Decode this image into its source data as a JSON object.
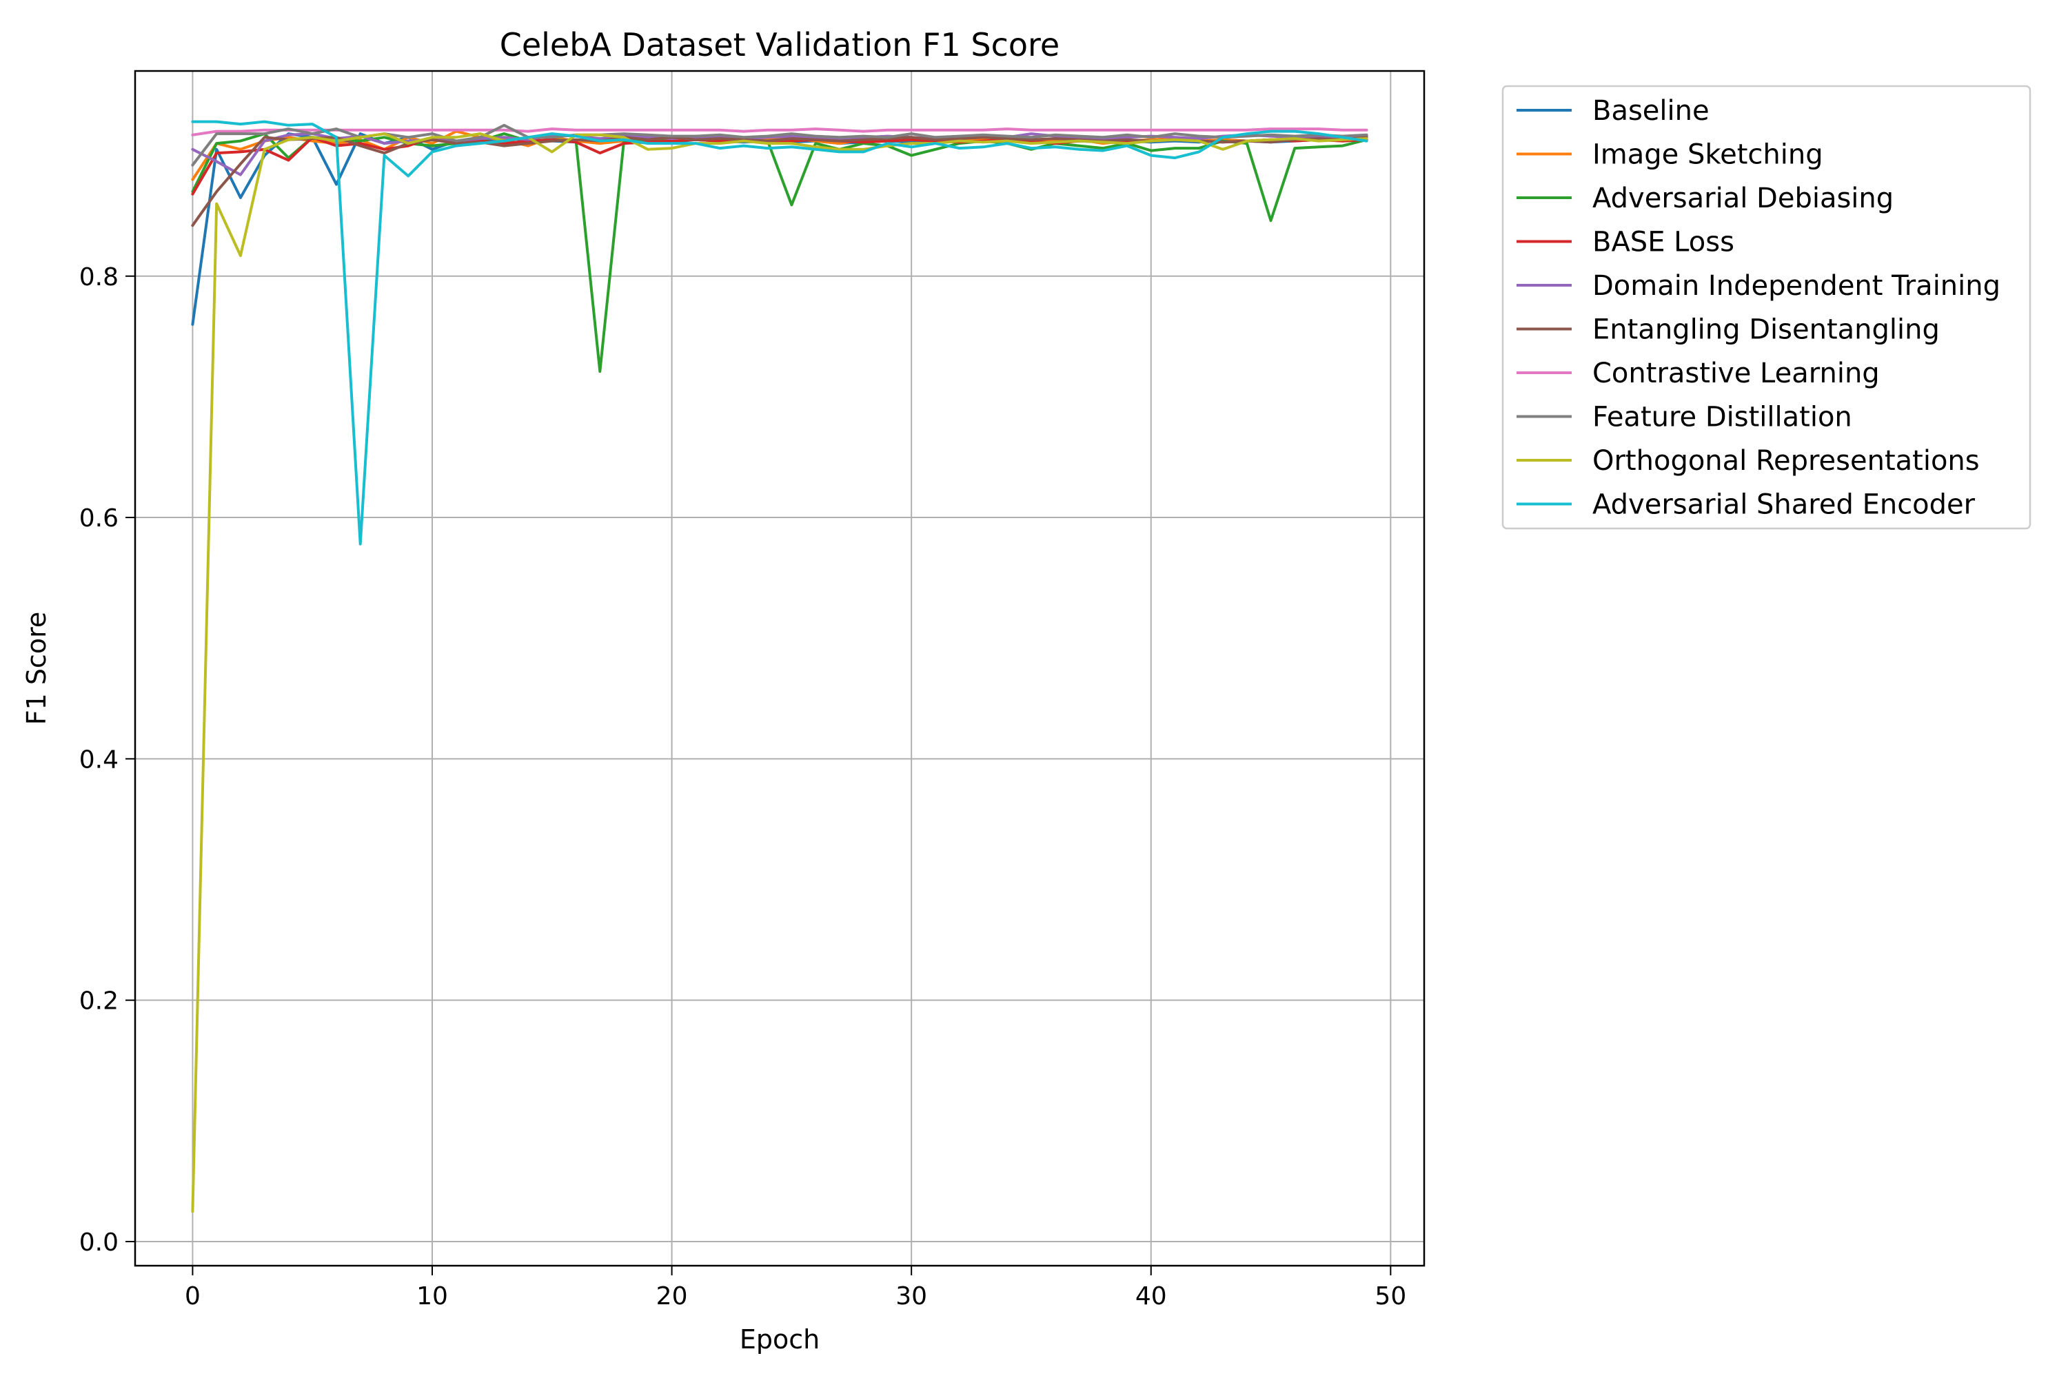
{
  "chart_data": {
    "type": "line",
    "title": "CelebA Dataset Validation F1 Score",
    "xlabel": "Epoch",
    "ylabel": "F1 Score",
    "xlim": [
      -2.4,
      51.4
    ],
    "ylim": [
      -0.02,
      0.97
    ],
    "xticks": [
      0,
      10,
      20,
      30,
      40,
      50
    ],
    "yticks": [
      0.0,
      0.2,
      0.4,
      0.6,
      0.8
    ],
    "ytick_labels": [
      "0.0",
      "0.2",
      "0.4",
      "0.6",
      "0.8"
    ],
    "xtick_labels": [
      "0",
      "10",
      "20",
      "30",
      "40",
      "50"
    ],
    "grid": true,
    "legend_position": "outside-right-top",
    "x": [
      0,
      1,
      2,
      3,
      4,
      5,
      6,
      7,
      8,
      9,
      10,
      11,
      12,
      13,
      14,
      15,
      16,
      17,
      18,
      19,
      20,
      21,
      22,
      23,
      24,
      25,
      26,
      27,
      28,
      29,
      30,
      31,
      32,
      33,
      34,
      35,
      36,
      37,
      38,
      39,
      40,
      41,
      42,
      43,
      44,
      45,
      46,
      47,
      48,
      49
    ],
    "series": [
      {
        "name": "Baseline",
        "color": "#1f77b4",
        "values": [
          0.76,
          0.905,
          0.865,
          0.9,
          0.918,
          0.915,
          0.876,
          0.918,
          0.91,
          0.915,
          0.905,
          0.912,
          0.912,
          0.914,
          0.913,
          0.912,
          0.911,
          0.913,
          0.912,
          0.912,
          0.911,
          0.913,
          0.912,
          0.911,
          0.912,
          0.911,
          0.912,
          0.91,
          0.911,
          0.912,
          0.911,
          0.912,
          0.911,
          0.912,
          0.913,
          0.912,
          0.911,
          0.912,
          0.911,
          0.912,
          0.911,
          0.912,
          0.911,
          0.913,
          0.912,
          0.911,
          0.912,
          0.913,
          0.912,
          0.913
        ]
      },
      {
        "name": "Image Sketching",
        "color": "#ff7f0e",
        "values": [
          0.88,
          0.91,
          0.905,
          0.912,
          0.915,
          0.912,
          0.91,
          0.913,
          0.905,
          0.915,
          0.91,
          0.92,
          0.915,
          0.913,
          0.908,
          0.915,
          0.912,
          0.91,
          0.912,
          0.914,
          0.913,
          0.915,
          0.914,
          0.912,
          0.913,
          0.914,
          0.912,
          0.91,
          0.913,
          0.912,
          0.913,
          0.912,
          0.914,
          0.913,
          0.914,
          0.913,
          0.912,
          0.913,
          0.91,
          0.912,
          0.913,
          0.914,
          0.912,
          0.913,
          0.912,
          0.913,
          0.914,
          0.913,
          0.912,
          0.913
        ]
      },
      {
        "name": "Adversarial Debiasing",
        "color": "#2ca02c",
        "values": [
          0.87,
          0.91,
          0.912,
          0.918,
          0.898,
          0.915,
          0.913,
          0.912,
          0.915,
          0.91,
          0.908,
          0.91,
          0.912,
          0.918,
          0.912,
          0.913,
          0.912,
          0.721,
          0.912,
          0.913,
          0.912,
          0.913,
          0.912,
          0.913,
          0.912,
          0.859,
          0.91,
          0.905,
          0.91,
          0.908,
          0.9,
          0.905,
          0.91,
          0.912,
          0.91,
          0.905,
          0.91,
          0.908,
          0.906,
          0.91,
          0.904,
          0.906,
          0.906,
          0.912,
          0.91,
          0.846,
          0.906,
          0.907,
          0.908,
          0.913
        ]
      },
      {
        "name": "BASE Loss",
        "color": "#d62728",
        "values": [
          0.868,
          0.902,
          0.903,
          0.905,
          0.896,
          0.915,
          0.908,
          0.91,
          0.905,
          0.908,
          0.915,
          0.912,
          0.912,
          0.91,
          0.912,
          0.913,
          0.911,
          0.902,
          0.91,
          0.911,
          0.912,
          0.913,
          0.912,
          0.913,
          0.911,
          0.912,
          0.913,
          0.912,
          0.911,
          0.912,
          0.913,
          0.912,
          0.911,
          0.912,
          0.913,
          0.912,
          0.91,
          0.912,
          0.913,
          0.911,
          0.912,
          0.913,
          0.912,
          0.911,
          0.912,
          0.913,
          0.912,
          0.913,
          0.912,
          0.913
        ]
      },
      {
        "name": "Domain Independent Training",
        "color": "#9467bd",
        "values": [
          0.905,
          0.895,
          0.884,
          0.912,
          0.917,
          0.918,
          0.914,
          0.916,
          0.91,
          0.912,
          0.913,
          0.912,
          0.914,
          0.915,
          0.913,
          0.917,
          0.916,
          0.914,
          0.916,
          0.915,
          0.914,
          0.915,
          0.916,
          0.914,
          0.915,
          0.916,
          0.915,
          0.914,
          0.915,
          0.916,
          0.915,
          0.914,
          0.915,
          0.916,
          0.915,
          0.918,
          0.916,
          0.915,
          0.914,
          0.915,
          0.916,
          0.915,
          0.914,
          0.916,
          0.917,
          0.916,
          0.915,
          0.916,
          0.915,
          0.916
        ]
      },
      {
        "name": "Entangling Disentangling",
        "color": "#8c564b",
        "values": [
          0.842,
          0.87,
          0.893,
          0.915,
          0.913,
          0.914,
          0.915,
          0.908,
          0.902,
          0.91,
          0.913,
          0.91,
          0.911,
          0.908,
          0.91,
          0.912,
          0.913,
          0.912,
          0.915,
          0.913,
          0.915,
          0.913,
          0.914,
          0.913,
          0.912,
          0.914,
          0.913,
          0.912,
          0.913,
          0.914,
          0.915,
          0.913,
          0.914,
          0.915,
          0.914,
          0.913,
          0.914,
          0.913,
          0.912,
          0.913,
          0.912,
          0.913,
          0.912,
          0.911,
          0.912,
          0.911,
          0.913,
          0.914,
          0.913,
          0.915
        ]
      },
      {
        "name": "Contrastive Learning",
        "color": "#e377c2",
        "values": [
          0.917,
          0.92,
          0.92,
          0.921,
          0.921,
          0.921,
          0.921,
          0.921,
          0.921,
          0.921,
          0.921,
          0.921,
          0.921,
          0.921,
          0.92,
          0.922,
          0.921,
          0.921,
          0.921,
          0.921,
          0.921,
          0.921,
          0.921,
          0.92,
          0.921,
          0.921,
          0.922,
          0.921,
          0.92,
          0.921,
          0.921,
          0.921,
          0.921,
          0.921,
          0.922,
          0.921,
          0.921,
          0.921,
          0.921,
          0.921,
          0.921,
          0.921,
          0.921,
          0.921,
          0.921,
          0.922,
          0.922,
          0.922,
          0.921,
          0.921
        ]
      },
      {
        "name": "Feature Distillation",
        "color": "#7f7f7f",
        "values": [
          0.892,
          0.918,
          0.918,
          0.918,
          0.922,
          0.918,
          0.922,
          0.915,
          0.918,
          0.915,
          0.918,
          0.912,
          0.915,
          0.925,
          0.915,
          0.915,
          0.917,
          0.917,
          0.918,
          0.917,
          0.916,
          0.916,
          0.917,
          0.915,
          0.916,
          0.918,
          0.916,
          0.915,
          0.916,
          0.915,
          0.918,
          0.915,
          0.916,
          0.917,
          0.916,
          0.915,
          0.917,
          0.916,
          0.915,
          0.917,
          0.915,
          0.918,
          0.916,
          0.915,
          0.916,
          0.917,
          0.916,
          0.917,
          0.916,
          0.917
        ]
      },
      {
        "name": "Orthogonal Representations",
        "color": "#bcbd22",
        "values": [
          0.025,
          0.86,
          0.817,
          0.905,
          0.913,
          0.915,
          0.912,
          0.915,
          0.918,
          0.91,
          0.915,
          0.915,
          0.918,
          0.912,
          0.915,
          0.903,
          0.917,
          0.917,
          0.915,
          0.905,
          0.906,
          0.91,
          0.91,
          0.912,
          0.91,
          0.91,
          0.907,
          0.905,
          0.905,
          0.908,
          0.91,
          0.91,
          0.912,
          0.911,
          0.912,
          0.91,
          0.911,
          0.912,
          0.911,
          0.91,
          0.912,
          0.913,
          0.912,
          0.905,
          0.912,
          0.913,
          0.914,
          0.912,
          0.913,
          0.914
        ]
      },
      {
        "name": "Adversarial Shared Encoder",
        "color": "#17becf",
        "values": [
          0.928,
          0.928,
          0.926,
          0.928,
          0.925,
          0.926,
          0.915,
          0.578,
          0.9,
          0.883,
          0.903,
          0.908,
          0.91,
          0.912,
          0.915,
          0.918,
          0.916,
          0.912,
          0.913,
          0.91,
          0.91,
          0.91,
          0.906,
          0.908,
          0.906,
          0.907,
          0.905,
          0.903,
          0.903,
          0.91,
          0.907,
          0.91,
          0.906,
          0.907,
          0.91,
          0.906,
          0.907,
          0.905,
          0.904,
          0.908,
          0.9,
          0.898,
          0.903,
          0.915,
          0.918,
          0.92,
          0.92,
          0.918,
          0.915,
          0.912
        ]
      }
    ]
  }
}
